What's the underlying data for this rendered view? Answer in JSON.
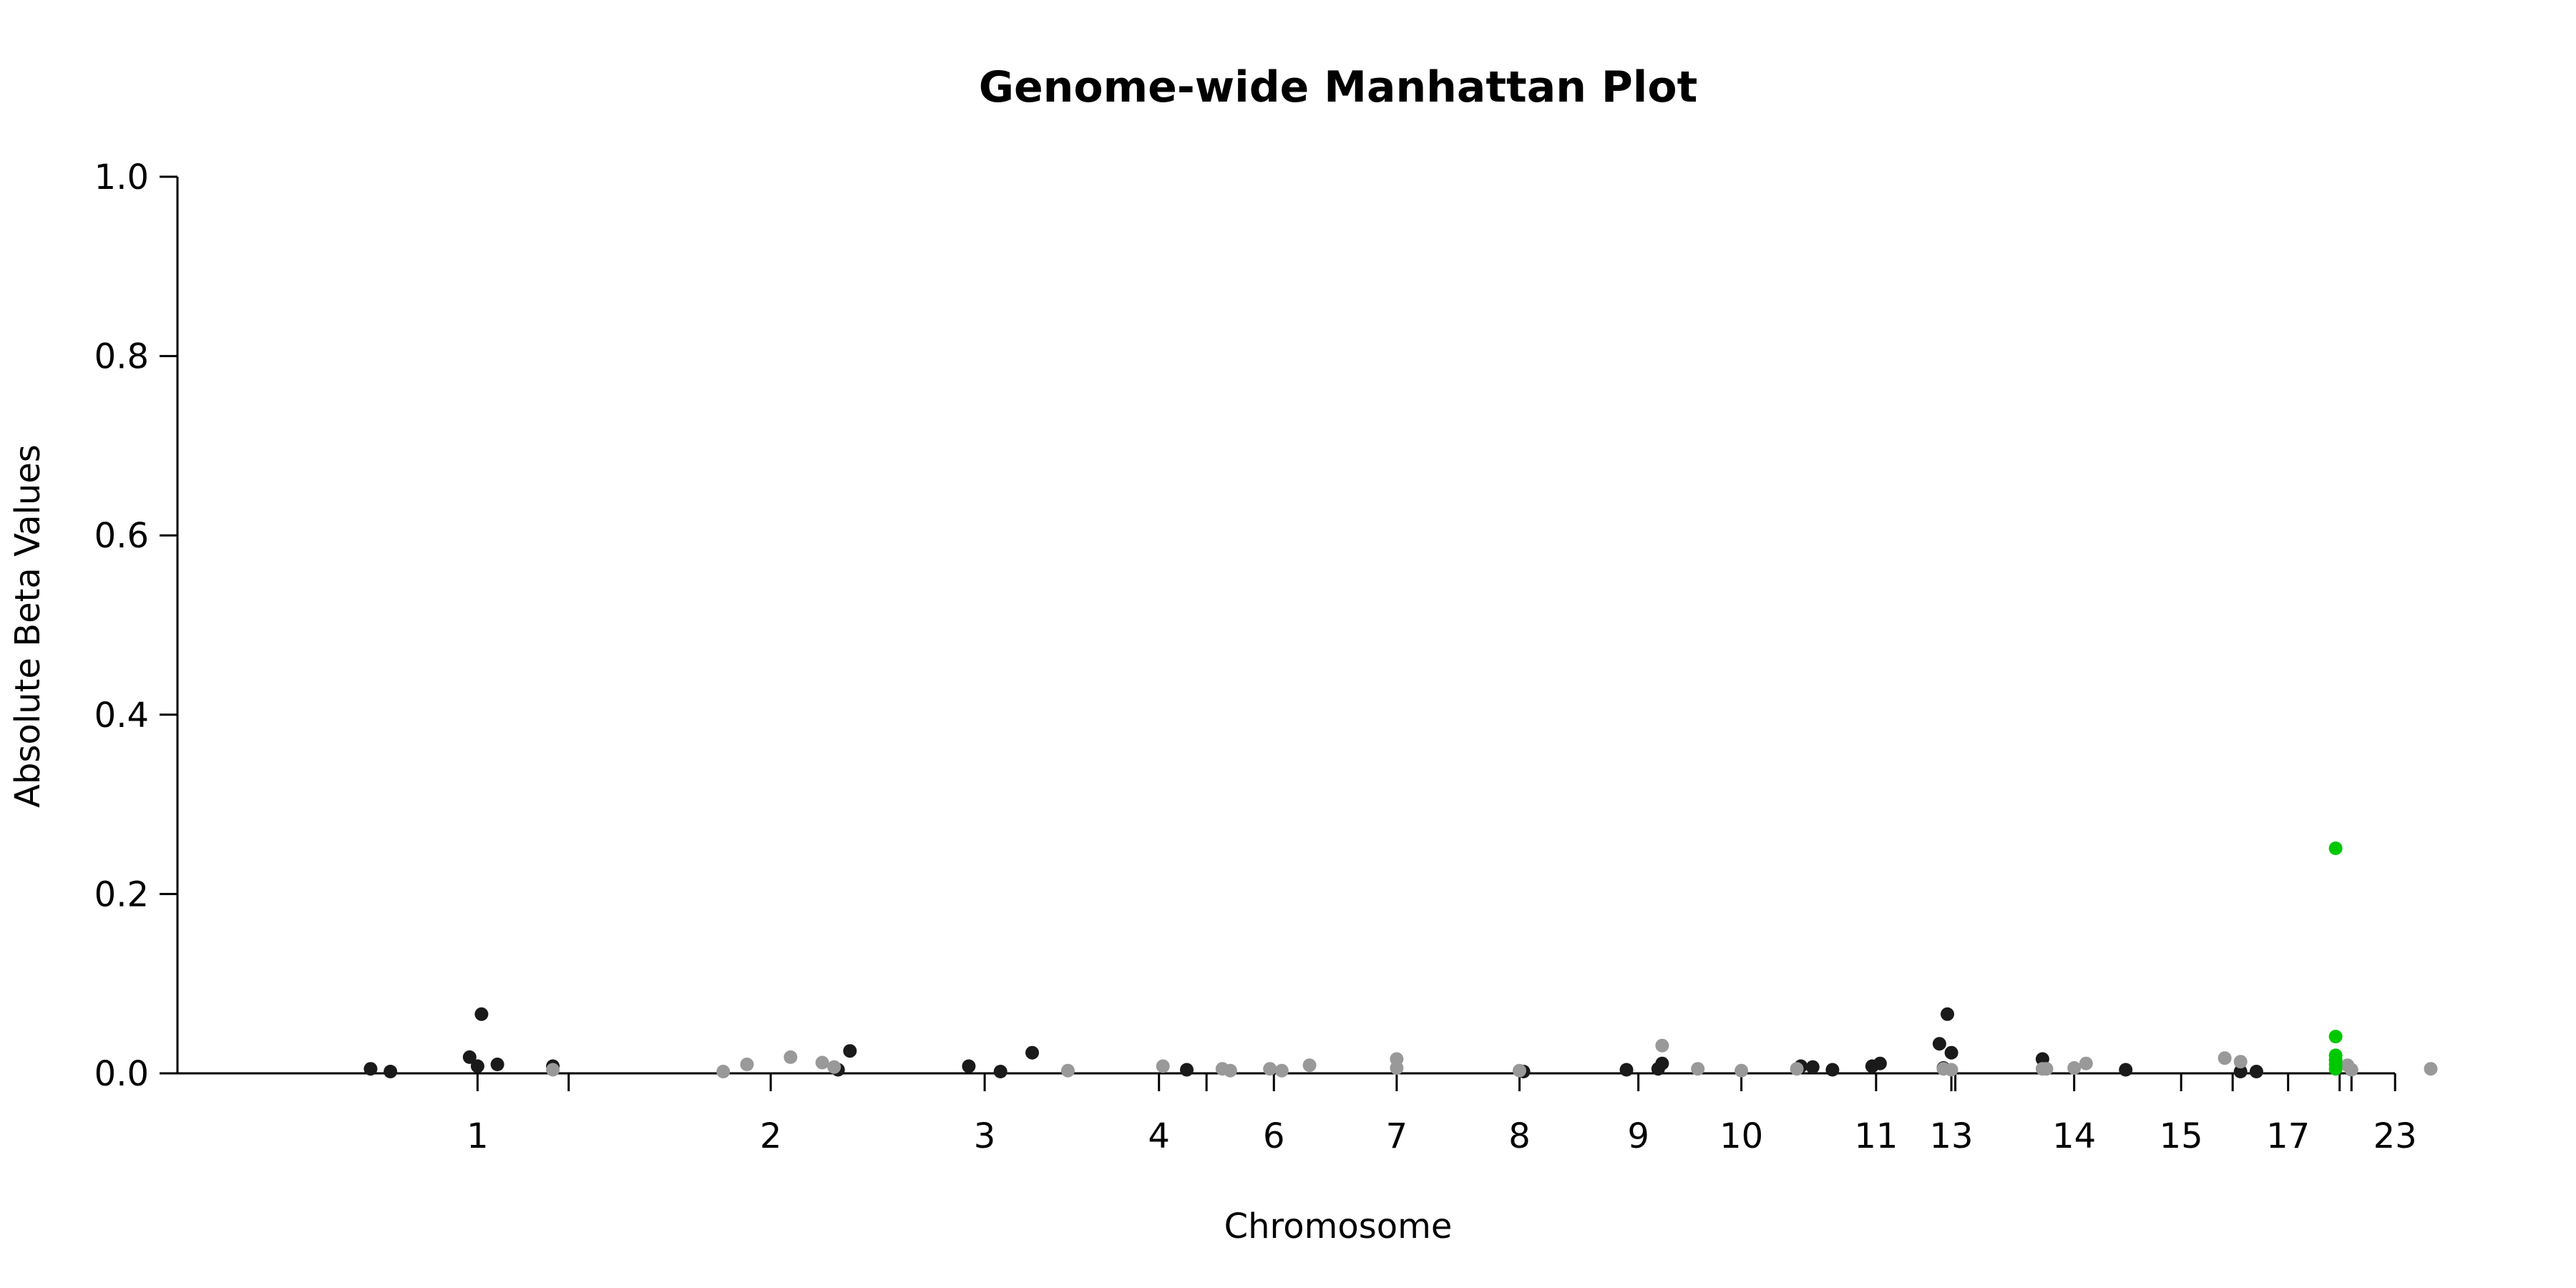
{
  "chart_data": {
    "type": "scatter",
    "title": "Genome-wide Manhattan Plot",
    "xlabel": "Chromosome",
    "ylabel": "Absolute Beta Values",
    "ylim": [
      0,
      1.0
    ],
    "yticks": [
      "0.0",
      "0.2",
      "0.4",
      "0.6",
      "0.8",
      "1.0"
    ],
    "xticks": [
      {
        "label": "1",
        "pos": 1.35
      },
      {
        "label": "",
        "pos": 2.5
      },
      {
        "label": "2",
        "pos": 5.05
      },
      {
        "label": "3",
        "pos": 7.75
      },
      {
        "label": "4",
        "pos": 9.95
      },
      {
        "label": "",
        "pos": 10.55
      },
      {
        "label": "6",
        "pos": 11.4
      },
      {
        "label": "7",
        "pos": 12.95
      },
      {
        "label": "8",
        "pos": 14.5
      },
      {
        "label": "9",
        "pos": 16.0
      },
      {
        "label": "10",
        "pos": 17.3
      },
      {
        "label": "11",
        "pos": 19.0
      },
      {
        "label": "13",
        "pos": 19.95
      },
      {
        "label": "",
        "pos": 20.0
      },
      {
        "label": "14",
        "pos": 21.5
      },
      {
        "label": "15",
        "pos": 22.85
      },
      {
        "label": "",
        "pos": 23.5
      },
      {
        "label": "17",
        "pos": 24.2
      },
      {
        "label": "",
        "pos": 24.85
      },
      {
        "label": "",
        "pos": 25.0
      },
      {
        "label": "23",
        "pos": 25.55
      }
    ],
    "xlim": [
      -1.2,
      26.0
    ],
    "colors": {
      "dark": "#1a1a1a",
      "light": "#999999",
      "highlight": "#00c800"
    },
    "series": [
      {
        "color_key": "dark",
        "points": [
          [
            0.0,
            0.005
          ],
          [
            0.25,
            0.002
          ],
          [
            1.25,
            0.018
          ],
          [
            1.35,
            0.008
          ],
          [
            1.4,
            0.066
          ],
          [
            1.6,
            0.01
          ],
          [
            2.3,
            0.008
          ],
          [
            5.9,
            0.004
          ],
          [
            6.05,
            0.025
          ],
          [
            7.55,
            0.008
          ],
          [
            7.95,
            0.002
          ],
          [
            8.35,
            0.023
          ],
          [
            10.3,
            0.004
          ],
          [
            14.55,
            0.002
          ],
          [
            15.85,
            0.004
          ],
          [
            16.25,
            0.005
          ],
          [
            16.3,
            0.011
          ],
          [
            18.05,
            0.008
          ],
          [
            18.2,
            0.007
          ],
          [
            18.45,
            0.004
          ],
          [
            18.95,
            0.008
          ],
          [
            19.05,
            0.011
          ],
          [
            19.8,
            0.033
          ],
          [
            19.85,
            0.006
          ],
          [
            19.9,
            0.066
          ],
          [
            19.95,
            0.023
          ],
          [
            21.1,
            0.016
          ],
          [
            22.15,
            0.004
          ],
          [
            23.6,
            0.002
          ],
          [
            23.8,
            0.002
          ]
        ]
      },
      {
        "color_key": "light",
        "points": [
          [
            2.3,
            0.004
          ],
          [
            4.45,
            0.002
          ],
          [
            4.75,
            0.01
          ],
          [
            5.3,
            0.018
          ],
          [
            5.7,
            0.012
          ],
          [
            5.85,
            0.007
          ],
          [
            8.8,
            0.003
          ],
          [
            10.0,
            0.008
          ],
          [
            10.75,
            0.005
          ],
          [
            10.85,
            0.003
          ],
          [
            11.35,
            0.005
          ],
          [
            11.5,
            0.003
          ],
          [
            11.85,
            0.009
          ],
          [
            12.95,
            0.016
          ],
          [
            12.95,
            0.006
          ],
          [
            14.5,
            0.003
          ],
          [
            16.3,
            0.031
          ],
          [
            16.75,
            0.005
          ],
          [
            17.3,
            0.003
          ],
          [
            18.0,
            0.005
          ],
          [
            19.85,
            0.005
          ],
          [
            19.95,
            0.004
          ],
          [
            21.1,
            0.005
          ],
          [
            21.15,
            0.005
          ],
          [
            21.5,
            0.006
          ],
          [
            21.65,
            0.011
          ],
          [
            23.4,
            0.017
          ],
          [
            23.6,
            0.013
          ],
          [
            24.95,
            0.009
          ],
          [
            25.0,
            0.004
          ],
          [
            26.0,
            0.005
          ]
        ]
      },
      {
        "color_key": "highlight",
        "points": [
          [
            24.8,
            0.251
          ],
          [
            24.8,
            0.041
          ],
          [
            24.8,
            0.02
          ],
          [
            24.8,
            0.015
          ],
          [
            24.8,
            0.01
          ],
          [
            24.8,
            0.005
          ]
        ]
      }
    ]
  }
}
